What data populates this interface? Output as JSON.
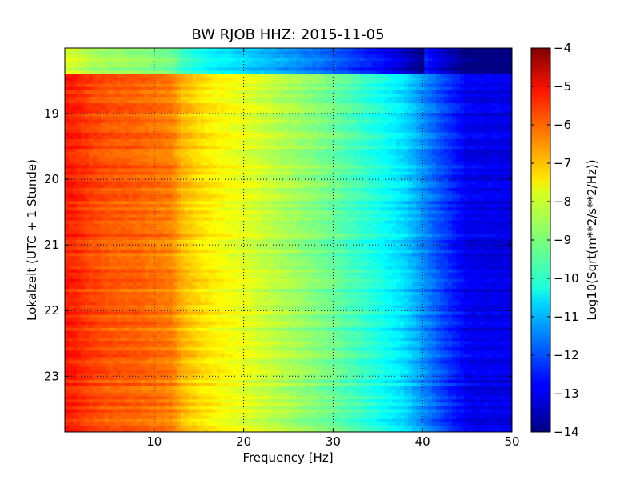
{
  "chart_data": {
    "type": "heatmap",
    "title": "BW RJOB HHZ: 2015-11-05",
    "xlabel": "Frequency [Hz]",
    "ylabel": "Lokalzeit (UTC + 1 Stunde)",
    "xlim": [
      0,
      50
    ],
    "ylim": [
      18.0,
      23.85
    ],
    "x_ticks": [
      10,
      20,
      30,
      40,
      50
    ],
    "x_tick_labels": [
      "10",
      "20",
      "30",
      "40",
      "50"
    ],
    "y_ticks": [
      19,
      20,
      21,
      22,
      23
    ],
    "y_tick_labels": [
      "19",
      "20",
      "21",
      "22",
      "23"
    ],
    "grid": true,
    "colormap": "jet",
    "colorbar": {
      "label": "Log10(Sqrt(m**2/s**2/Hz))",
      "min": -14,
      "max": -4,
      "ticks": [
        -4,
        -5,
        -6,
        -7,
        -8,
        -9,
        -10,
        -11,
        -12,
        -13,
        -14
      ],
      "tick_labels": [
        "−4",
        "−5",
        "−6",
        "−7",
        "−8",
        "−9",
        "−10",
        "−11",
        "−12",
        "−13",
        "−14"
      ]
    },
    "spectral_profile": {
      "frequency_hz": [
        0,
        1,
        3,
        5,
        8,
        12,
        13,
        15,
        17,
        20,
        25,
        30,
        35,
        38,
        40,
        42,
        45,
        50
      ],
      "log_amplitude": [
        -5.5,
        -5.6,
        -5.9,
        -6.1,
        -6.2,
        -6.5,
        -7.0,
        -7.4,
        -7.7,
        -8.0,
        -8.6,
        -9.2,
        -10.0,
        -10.6,
        -11.3,
        -12.0,
        -12.9,
        -13.0
      ]
    },
    "quiet_period_end_hour": 18.35
  }
}
